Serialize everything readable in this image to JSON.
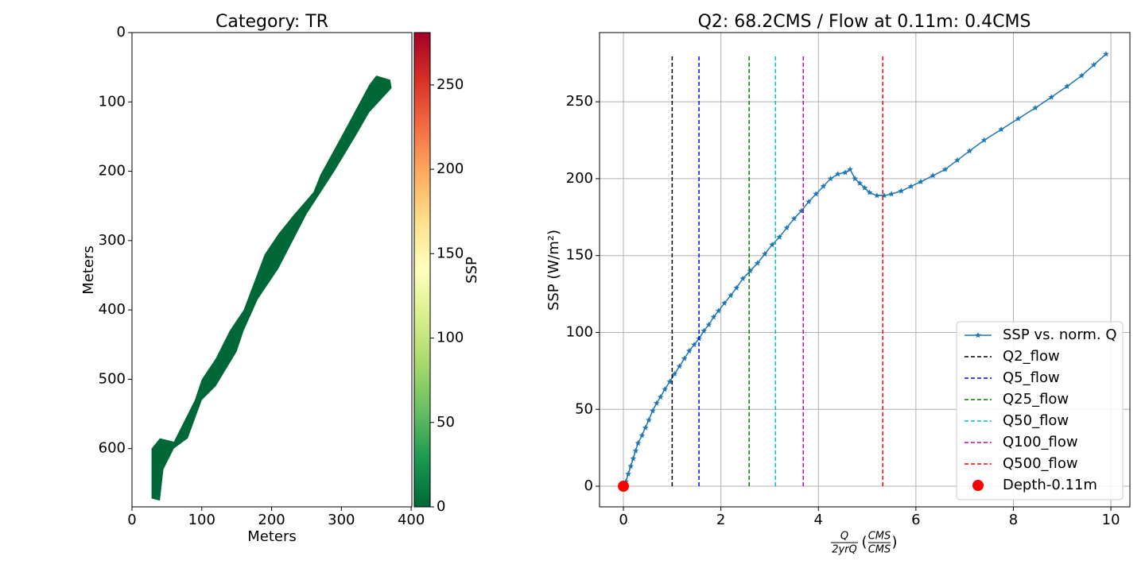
{
  "chart_data": [
    {
      "type": "raster",
      "title": "Category: TR",
      "xlabel": "Meters",
      "ylabel": "Meters",
      "xlim": [
        0,
        401
      ],
      "ylim": [
        684,
        0
      ],
      "xticks": [
        0,
        100,
        200,
        300,
        400
      ],
      "yticks": [
        0,
        100,
        200,
        300,
        400,
        500,
        600
      ],
      "region": {
        "color": "#006837",
        "x": [
          28,
          28,
          40,
          60,
          90,
          100,
          120,
          140,
          160,
          175,
          190,
          210,
          230,
          260,
          270,
          300,
          340,
          350,
          370,
          372,
          340,
          320,
          290,
          250,
          210,
          180,
          160,
          150,
          120,
          100,
          80,
          60,
          45,
          40
        ],
        "y": [
          672,
          600,
          585,
          590,
          530,
          500,
          470,
          430,
          400,
          360,
          320,
          290,
          265,
          230,
          205,
          150,
          75,
          62,
          68,
          80,
          115,
          150,
          200,
          262,
          340,
          385,
          430,
          460,
          510,
          530,
          585,
          600,
          630,
          675
        ]
      },
      "colorbar": {
        "label": "SSP",
        "clim": [
          0,
          281
        ],
        "ticks": [
          0,
          50,
          100,
          150,
          200,
          250
        ],
        "colors": [
          "#006837",
          "#1a9850",
          "#66bd63",
          "#a6d96a",
          "#d9ef8b",
          "#ffffbf",
          "#fee08b",
          "#fdae61",
          "#f46d43",
          "#d73027",
          "#a50026"
        ]
      }
    },
    {
      "type": "line",
      "title": "Q2: 68.2CMS / Flow at 0.11m: 0.4CMS",
      "ylabel": "SSP (W/m²)",
      "xlabel": {
        "numerator": "Q",
        "denominator": "2yrQ",
        "unit_numerator": "CMS",
        "unit_denominator": "CMS"
      },
      "xlim": [
        -0.49,
        10.39
      ],
      "ylim": [
        -13.4,
        295
      ],
      "xticks": [
        0,
        2,
        4,
        6,
        8,
        10
      ],
      "yticks": [
        0,
        50,
        100,
        150,
        200,
        250
      ],
      "grid": true,
      "legend": "lower right",
      "series": [
        {
          "name": "SSP vs. norm. Q",
          "color": "#1f77b4",
          "marker": "star",
          "x": [
            0,
            0.05,
            0.1,
            0.15,
            0.2,
            0.25,
            0.3,
            0.38,
            0.45,
            0.52,
            0.6,
            0.68,
            0.76,
            0.85,
            0.95,
            1.05,
            1.15,
            1.25,
            1.35,
            1.45,
            1.55,
            1.65,
            1.75,
            1.85,
            1.95,
            2.07,
            2.2,
            2.32,
            2.45,
            2.6,
            2.75,
            2.9,
            3.05,
            3.2,
            3.35,
            3.5,
            3.65,
            3.8,
            3.95,
            4.1,
            4.25,
            4.4,
            4.55,
            4.65,
            4.75,
            4.85,
            4.95,
            5.05,
            5.2,
            5.35,
            5.5,
            5.7,
            5.9,
            6.1,
            6.35,
            6.6,
            6.85,
            7.1,
            7.4,
            7.75,
            8.1,
            8.45,
            8.78,
            9.1,
            9.4,
            9.65,
            9.9
          ],
          "values": [
            0,
            3,
            8,
            13,
            18,
            23,
            28,
            33,
            38,
            43,
            49,
            54,
            58,
            63,
            68,
            73,
            78,
            83,
            88,
            92,
            96,
            101,
            105,
            110,
            114,
            119,
            124,
            129,
            135,
            140,
            145,
            151,
            157,
            162,
            168,
            174,
            179,
            185,
            190,
            195,
            200,
            203,
            204,
            206,
            200,
            197,
            194,
            191,
            189,
            189,
            190,
            192,
            195,
            198,
            202,
            206,
            212,
            218,
            225,
            232,
            239,
            246,
            253,
            260,
            267,
            274,
            281
          ]
        },
        {
          "name": "Q2_flow",
          "color": "#000000",
          "style": "dashed",
          "x": 1.0,
          "ymin": 0,
          "ymax": 281
        },
        {
          "name": "Q5_flow",
          "color": "#0000ff",
          "style": "dashed",
          "x": 1.55,
          "ymin": 0,
          "ymax": 281
        },
        {
          "name": "Q25_flow",
          "color": "#008000",
          "style": "dashed",
          "x": 2.58,
          "ymin": 0,
          "ymax": 281
        },
        {
          "name": "Q50_flow",
          "color": "#00bfbf",
          "style": "dashed",
          "x": 3.12,
          "ymin": 0,
          "ymax": 281
        },
        {
          "name": "Q100_flow",
          "color": "#bf00bf",
          "style": "dashed",
          "x": 3.69,
          "ymin": 0,
          "ymax": 281
        },
        {
          "name": "Q500_flow",
          "color": "#ff0000",
          "style": "dashed",
          "x": 5.32,
          "ymin": 0,
          "ymax": 281
        },
        {
          "name": "Depth-0.11m",
          "color": "#ff0000",
          "style": "point",
          "x": 0,
          "y": 0
        }
      ]
    }
  ]
}
